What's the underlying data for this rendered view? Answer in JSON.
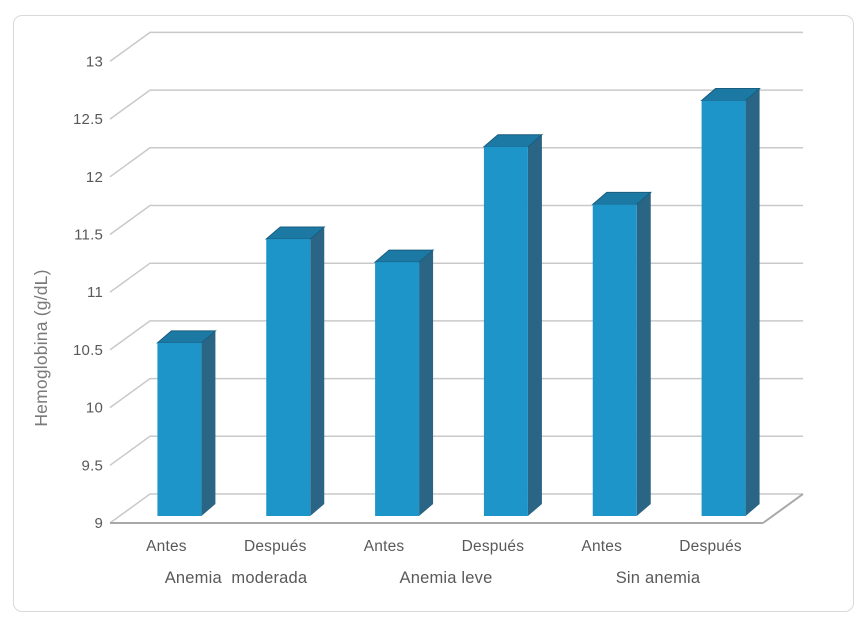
{
  "figure": {
    "kind": "3d-column-chart",
    "background": "#FFFFFF"
  },
  "chart_data": {
    "type": "bar",
    "projection": "3d",
    "title": "",
    "xlabel": "",
    "ylabel": "Hemoglobina (g/dL)",
    "ylim": [
      9,
      13
    ],
    "ytick_step": 0.5,
    "ytick_labels": [
      "9",
      "9.5",
      "10",
      "10.5",
      "11",
      "11.5",
      "12",
      "12.5",
      "13"
    ],
    "grid": true,
    "legend": false,
    "groups": [
      {
        "label": "Anemia  moderada",
        "categories": [
          "Antes",
          "Después"
        ],
        "values": [
          10.5,
          11.4
        ]
      },
      {
        "label": "Anemia leve",
        "categories": [
          "Antes",
          "Después"
        ],
        "values": [
          11.2,
          12.2
        ]
      },
      {
        "label": "Sin anemia",
        "categories": [
          "Antes",
          "Después"
        ],
        "values": [
          11.7,
          12.6
        ]
      }
    ],
    "categories": [
      "Antes",
      "Después",
      "Antes",
      "Después",
      "Antes",
      "Después"
    ],
    "values": [
      10.5,
      11.4,
      11.2,
      12.2,
      11.7,
      12.6
    ]
  },
  "colors": {
    "bar_front": "#1E95C9",
    "bar_top": "#1B79A4",
    "bar_top_edge": "#1A5E7F",
    "bar_side": "#2B6585",
    "gridline": "#C9C9C9",
    "axis_line": "#A8A8A8",
    "tick_text": "#595959",
    "category_text": "#595959",
    "group_text": "#595959",
    "axis_title_text": "#7A7A7A",
    "frame_border": "#D9D9D9"
  }
}
